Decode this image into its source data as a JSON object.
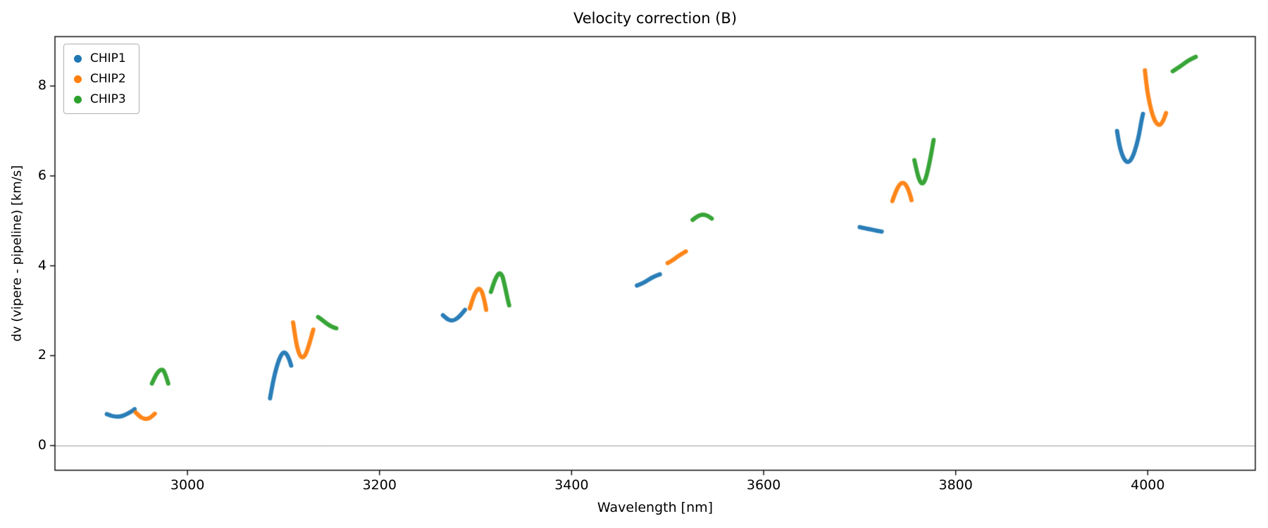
{
  "chart_data": {
    "type": "scatter",
    "title": "Velocity correction (B)",
    "xlabel": "Wavelength [nm]",
    "ylabel": "dv (vipere - pipeline) [km/s]",
    "xlim": [
      2862,
      4112
    ],
    "ylim": [
      -0.55,
      9.1
    ],
    "xticks": [
      3000,
      3200,
      3400,
      3600,
      3800,
      4000
    ],
    "yticks": [
      0,
      2,
      4,
      6,
      8
    ],
    "grid": false,
    "zero_line": true,
    "zero_line_color": "#999999",
    "legend_position": "upper left",
    "series": [
      {
        "name": "CHIP1",
        "color": "#1f77b4",
        "segments": [
          [
            [
              2916,
              0.7
            ],
            [
              2921,
              0.66
            ],
            [
              2926,
              0.64
            ],
            [
              2931,
              0.65
            ],
            [
              2936,
              0.69
            ],
            [
              2941,
              0.75
            ],
            [
              2945,
              0.81
            ]
          ],
          [
            [
              3086,
              1.05
            ],
            [
              3088,
              1.3
            ],
            [
              3091,
              1.6
            ],
            [
              3094,
              1.83
            ],
            [
              3097,
              2.0
            ],
            [
              3100,
              2.08
            ],
            [
              3103,
              2.05
            ],
            [
              3106,
              1.92
            ],
            [
              3108,
              1.78
            ]
          ],
          [
            [
              3266,
              2.9
            ],
            [
              3270,
              2.82
            ],
            [
              3274,
              2.78
            ],
            [
              3278,
              2.79
            ],
            [
              3282,
              2.85
            ],
            [
              3286,
              2.94
            ],
            [
              3289,
              3.02
            ]
          ],
          [
            [
              3468,
              3.56
            ],
            [
              3473,
              3.6
            ],
            [
              3478,
              3.66
            ],
            [
              3483,
              3.73
            ],
            [
              3488,
              3.78
            ],
            [
              3492,
              3.81
            ]
          ],
          [
            [
              3700,
              4.86
            ],
            [
              3706,
              4.83
            ],
            [
              3712,
              4.81
            ],
            [
              3718,
              4.78
            ],
            [
              3723,
              4.76
            ]
          ],
          [
            [
              3968,
              7.0
            ],
            [
              3970,
              6.72
            ],
            [
              3973,
              6.48
            ],
            [
              3976,
              6.35
            ],
            [
              3979,
              6.3
            ],
            [
              3982,
              6.34
            ],
            [
              3985,
              6.46
            ],
            [
              3988,
              6.66
            ],
            [
              3991,
              6.92
            ],
            [
              3993,
              7.18
            ],
            [
              3995,
              7.38
            ]
          ]
        ]
      },
      {
        "name": "CHIP2",
        "color": "#ff7f0e",
        "segments": [
          [
            [
              2946,
              0.74
            ],
            [
              2950,
              0.65
            ],
            [
              2954,
              0.6
            ],
            [
              2958,
              0.59
            ],
            [
              2962,
              0.63
            ],
            [
              2966,
              0.71
            ]
          ],
          [
            [
              3110,
              2.74
            ],
            [
              3112,
              2.45
            ],
            [
              3114,
              2.2
            ],
            [
              3117,
              2.0
            ],
            [
              3120,
              1.95
            ],
            [
              3123,
              2.02
            ],
            [
              3126,
              2.2
            ],
            [
              3129,
              2.42
            ],
            [
              3131,
              2.58
            ]
          ],
          [
            [
              3294,
              3.05
            ],
            [
              3297,
              3.26
            ],
            [
              3300,
              3.42
            ],
            [
              3303,
              3.5
            ],
            [
              3306,
              3.46
            ],
            [
              3308,
              3.33
            ],
            [
              3310,
              3.15
            ],
            [
              3311,
              3.02
            ]
          ],
          [
            [
              3500,
              4.06
            ],
            [
              3505,
              4.12
            ],
            [
              3510,
              4.2
            ],
            [
              3515,
              4.27
            ],
            [
              3519,
              4.32
            ]
          ],
          [
            [
              3734,
              5.44
            ],
            [
              3737,
              5.62
            ],
            [
              3740,
              5.76
            ],
            [
              3743,
              5.84
            ],
            [
              3746,
              5.85
            ],
            [
              3749,
              5.78
            ],
            [
              3752,
              5.62
            ],
            [
              3754,
              5.46
            ]
          ],
          [
            [
              3997,
              8.35
            ],
            [
              3999,
              7.95
            ],
            [
              4002,
              7.6
            ],
            [
              4005,
              7.35
            ],
            [
              4008,
              7.2
            ],
            [
              4011,
              7.13
            ],
            [
              4014,
              7.15
            ],
            [
              4017,
              7.27
            ],
            [
              4019,
              7.4
            ]
          ]
        ]
      },
      {
        "name": "CHIP3",
        "color": "#2ca02c",
        "segments": [
          [
            [
              2963,
              1.38
            ],
            [
              2966,
              1.52
            ],
            [
              2969,
              1.63
            ],
            [
              2972,
              1.69
            ],
            [
              2975,
              1.68
            ],
            [
              2977,
              1.58
            ],
            [
              2979,
              1.45
            ],
            [
              2980,
              1.38
            ]
          ],
          [
            [
              3136,
              2.86
            ],
            [
              3140,
              2.8
            ],
            [
              3144,
              2.73
            ],
            [
              3148,
              2.67
            ],
            [
              3152,
              2.63
            ],
            [
              3155,
              2.61
            ]
          ],
          [
            [
              3316,
              3.42
            ],
            [
              3319,
              3.62
            ],
            [
              3322,
              3.77
            ],
            [
              3325,
              3.85
            ],
            [
              3328,
              3.78
            ],
            [
              3330,
              3.6
            ],
            [
              3332,
              3.4
            ],
            [
              3334,
              3.2
            ],
            [
              3335,
              3.12
            ]
          ],
          [
            [
              3526,
              5.02
            ],
            [
              3530,
              5.09
            ],
            [
              3534,
              5.13
            ],
            [
              3538,
              5.14
            ],
            [
              3542,
              5.11
            ],
            [
              3546,
              5.05
            ]
          ],
          [
            [
              3757,
              6.35
            ],
            [
              3760,
              6.05
            ],
            [
              3763,
              5.86
            ],
            [
              3766,
              5.82
            ],
            [
              3769,
              5.95
            ],
            [
              3772,
              6.22
            ],
            [
              3775,
              6.55
            ],
            [
              3777,
              6.8
            ]
          ],
          [
            [
              4026,
              8.33
            ],
            [
              4031,
              8.4
            ],
            [
              4036,
              8.47
            ],
            [
              4041,
              8.55
            ],
            [
              4046,
              8.61
            ],
            [
              4050,
              8.65
            ]
          ]
        ]
      }
    ]
  }
}
